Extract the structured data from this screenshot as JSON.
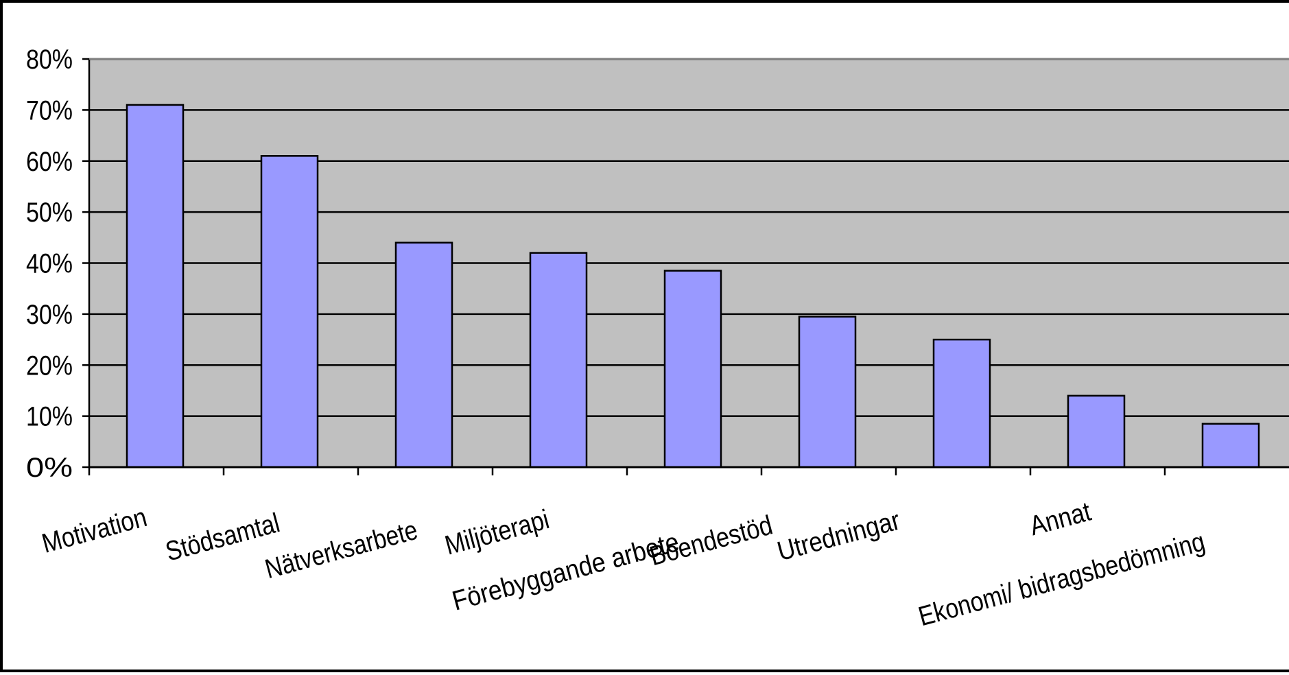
{
  "chart_data": {
    "type": "bar",
    "categories": [
      "Motivation",
      "Stödsamtal",
      "Nätverksarbete",
      "Miljöterapi",
      "Förebyggande arbete",
      "Boendestöd",
      "Utredningar",
      "Annat",
      "Ekonomi/ bidragsbedömning"
    ],
    "values": [
      71,
      61,
      44,
      42,
      38.5,
      29.5,
      25,
      14,
      8.5
    ],
    "value_unit": "%",
    "ylim": [
      0,
      80
    ],
    "yticks": [
      0,
      10,
      20,
      30,
      40,
      50,
      60,
      70,
      80
    ],
    "ytick_labels": [
      "0%",
      "10%",
      "20%",
      "30%",
      "40%",
      "50%",
      "60%",
      "70%",
      "80%"
    ],
    "title": "",
    "xlabel": "",
    "ylabel": "",
    "grid": true,
    "legend": "none",
    "colors": {
      "bar_fill": "#9999FF",
      "bar_stroke": "#000000",
      "plot_background": "#C0C0C0",
      "gridline": "#000000"
    }
  }
}
